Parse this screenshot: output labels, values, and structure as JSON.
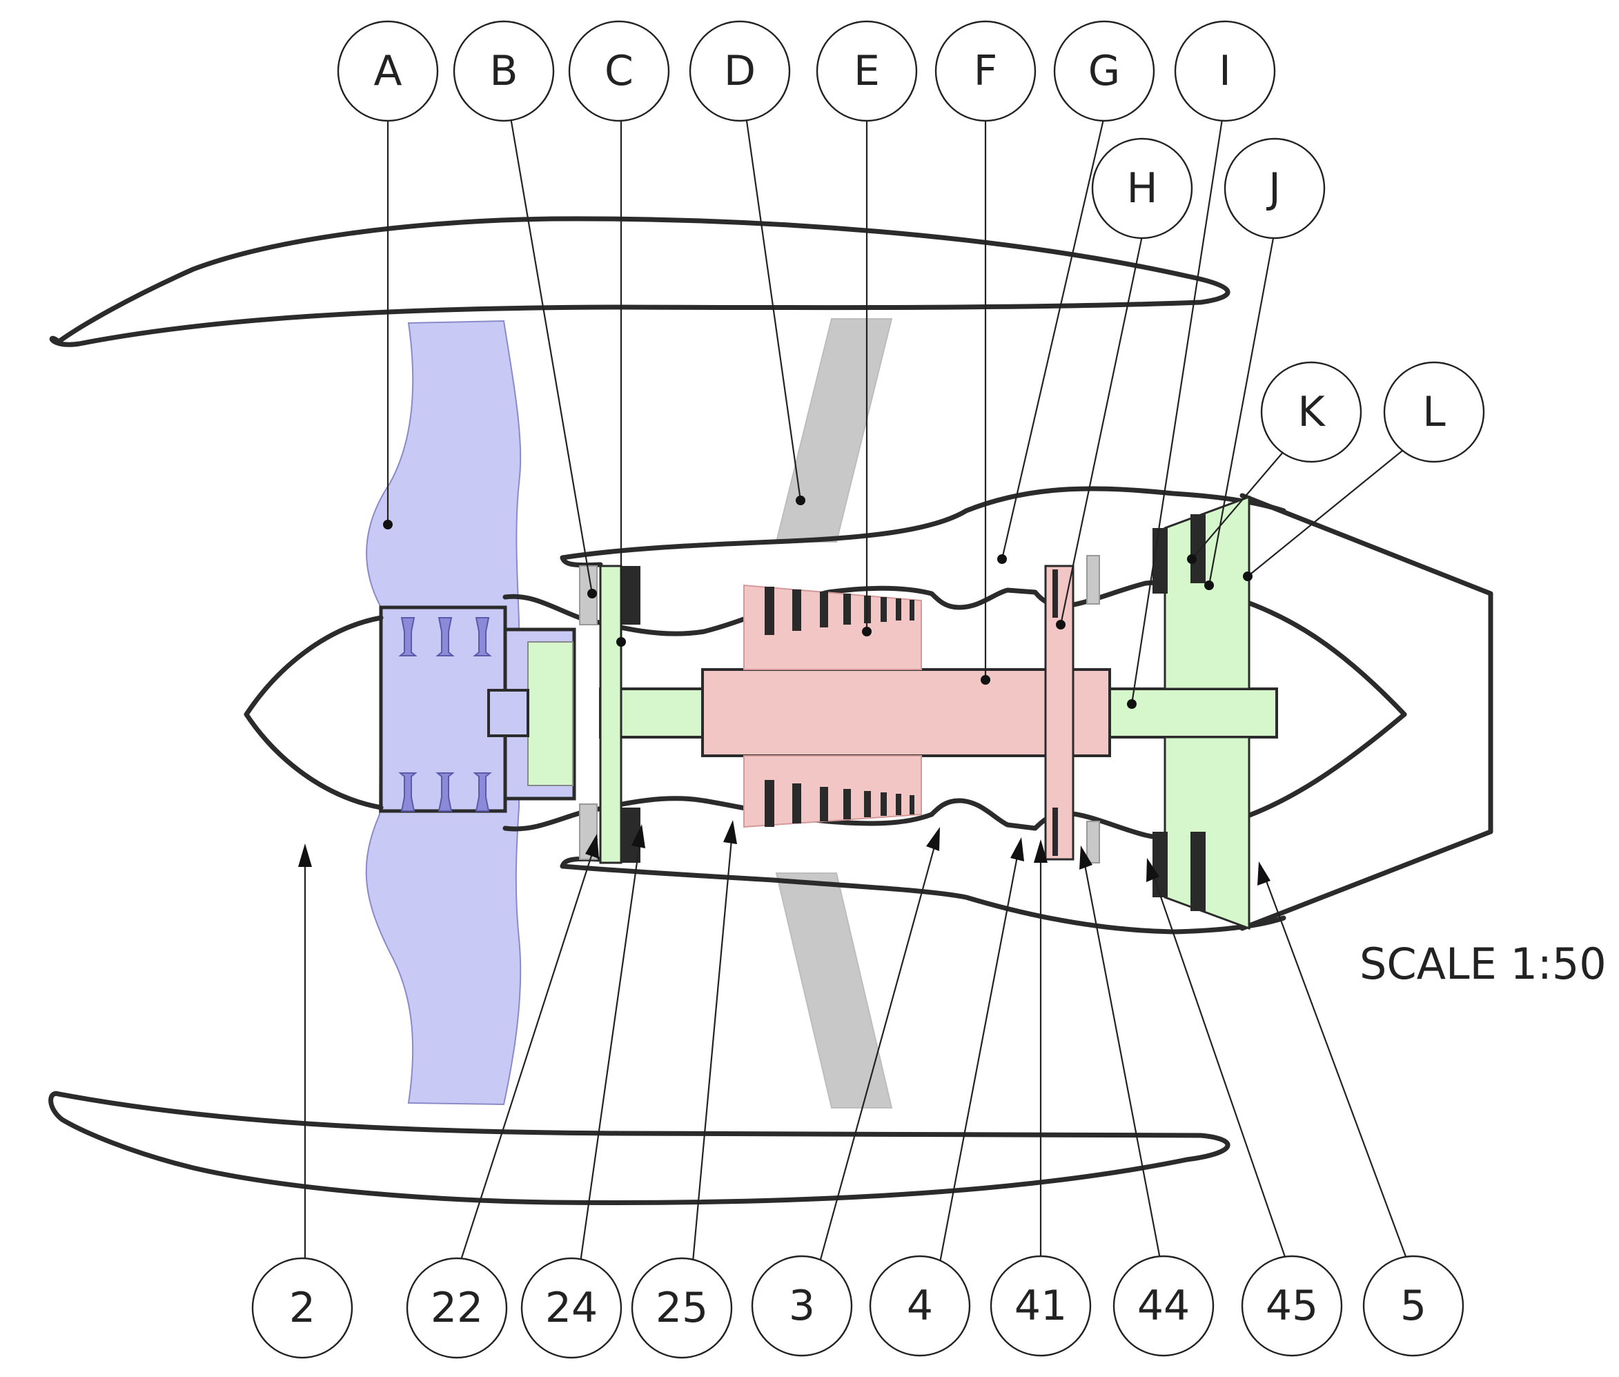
{
  "colors": {
    "fan": "#c9c9f5",
    "high_pressure": "#f3c6c6",
    "low_pressure": "#d6f7cc",
    "strut": "#c8c8c8",
    "stator": "#2a2a2a",
    "outline": "#2b2b2b"
  },
  "component_labels": [
    {
      "id": "A",
      "text": "A"
    },
    {
      "id": "B",
      "text": "B"
    },
    {
      "id": "C",
      "text": "C"
    },
    {
      "id": "D",
      "text": "D"
    },
    {
      "id": "E",
      "text": "E"
    },
    {
      "id": "F",
      "text": "F"
    },
    {
      "id": "G",
      "text": "G"
    },
    {
      "id": "H",
      "text": "H"
    },
    {
      "id": "I",
      "text": "I"
    },
    {
      "id": "J",
      "text": "J"
    },
    {
      "id": "K",
      "text": "K"
    },
    {
      "id": "L",
      "text": "L"
    }
  ],
  "station_labels": [
    {
      "id": "2",
      "text": "2"
    },
    {
      "id": "22",
      "text": "22"
    },
    {
      "id": "24",
      "text": "24"
    },
    {
      "id": "25",
      "text": "25"
    },
    {
      "id": "3",
      "text": "3"
    },
    {
      "id": "4",
      "text": "4"
    },
    {
      "id": "41",
      "text": "41"
    },
    {
      "id": "44",
      "text": "44"
    },
    {
      "id": "45",
      "text": "45"
    },
    {
      "id": "5",
      "text": "5"
    }
  ],
  "scale_text": "SCALE 1:50"
}
